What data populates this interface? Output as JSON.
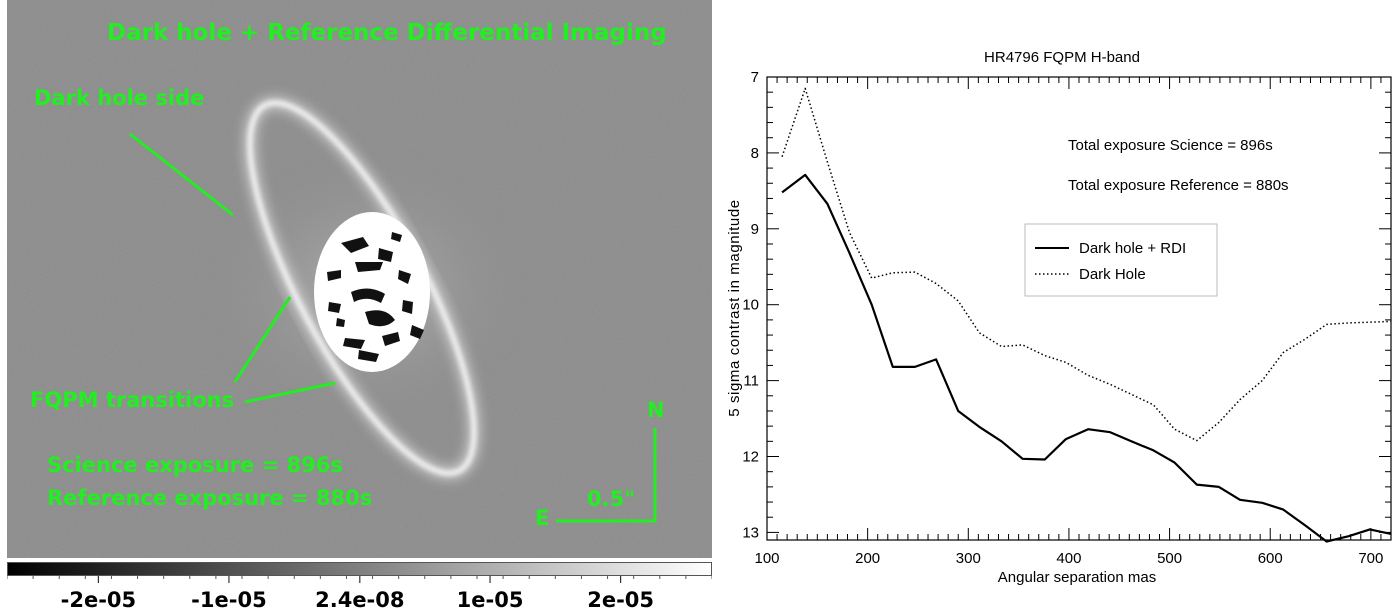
{
  "image_panel": {
    "title": "Dark hole + Reference Differential Imaging",
    "annotations": {
      "dark_hole_side": "Dark hole side",
      "fqpm_transitions": "FQPM transitions",
      "science_exposure": "Science exposure = 896s",
      "reference_exposure": "Reference exposure = 880s"
    },
    "compass": {
      "north": "N",
      "east": "E",
      "scale": "0.5\""
    },
    "colorbar": {
      "labels": [
        "-2e-05",
        "-1e-05",
        "2.4e-08",
        "1e-05",
        "2e-05"
      ],
      "values": [
        -2e-05,
        -1e-05,
        2.4e-08,
        1e-05,
        2e-05
      ],
      "range": [
        -2.7e-05,
        2.7e-05
      ],
      "colormap": "gray"
    },
    "colors": {
      "annotation": "#22ee22"
    }
  },
  "chart_data": {
    "type": "line",
    "title": "HR4796 FQPM H-band",
    "xlabel": "Angular separation mas",
    "ylabel": "5 sigma contrast in magnitude",
    "xlim": [
      100,
      720
    ],
    "ylim": [
      13.1,
      7.0
    ],
    "y_inverted": true,
    "xticks": [
      100,
      200,
      300,
      400,
      500,
      600,
      700
    ],
    "yticks": [
      7,
      8,
      9,
      10,
      11,
      12,
      13
    ],
    "grid": false,
    "legend_position": "center-right",
    "annotations": [
      "Total exposure Science = 896s",
      "Total exposure Reference = 880s"
    ],
    "series": [
      {
        "name": "Dark hole + RDI",
        "style": "solid",
        "color": "#000000",
        "x": [
          115,
          138,
          160,
          182,
          204,
          225,
          247,
          268,
          290,
          311,
          333,
          354,
          376,
          397,
          419,
          441,
          462,
          484,
          505,
          527,
          549,
          570,
          592,
          613,
          635,
          656,
          678,
          699,
          720
        ],
        "y": [
          8.52,
          8.29,
          8.67,
          9.32,
          10.0,
          10.82,
          10.82,
          10.72,
          11.4,
          11.61,
          11.8,
          12.03,
          12.04,
          11.77,
          11.64,
          11.68,
          11.8,
          11.92,
          12.08,
          12.37,
          12.4,
          12.57,
          12.61,
          12.7,
          12.91,
          13.12,
          13.05,
          12.96,
          13.02
        ]
      },
      {
        "name": "Dark Hole",
        "style": "dotted",
        "color": "#000000",
        "x": [
          115,
          138,
          160,
          182,
          204,
          225,
          247,
          268,
          290,
          311,
          333,
          354,
          376,
          397,
          419,
          441,
          462,
          484,
          505,
          527,
          549,
          570,
          592,
          613,
          635,
          656,
          678,
          699,
          720
        ],
        "y": [
          8.05,
          7.15,
          8.12,
          9.05,
          9.65,
          9.58,
          9.57,
          9.72,
          9.95,
          10.37,
          10.55,
          10.53,
          10.67,
          10.76,
          10.93,
          11.05,
          11.18,
          11.32,
          11.64,
          11.79,
          11.55,
          11.25,
          11.0,
          10.63,
          10.45,
          10.26,
          10.24,
          10.23,
          10.22
        ]
      }
    ]
  }
}
